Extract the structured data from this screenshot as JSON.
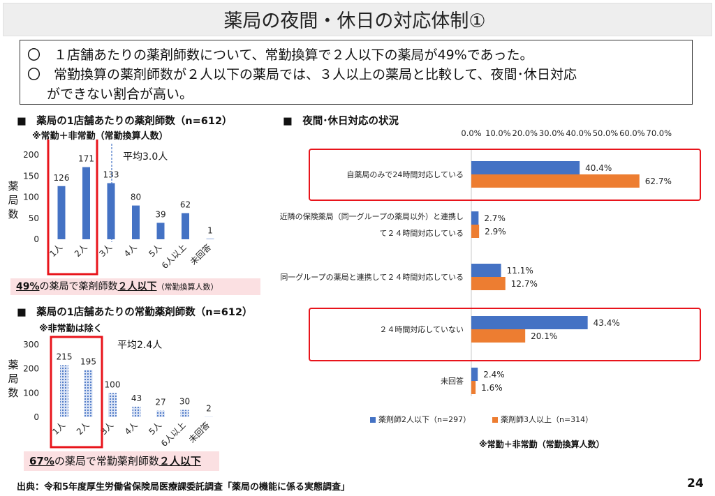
{
  "title": "薬局の夜間・休日の対応体制①",
  "summary": {
    "line1": "〇　１店舗あたりの薬剤師数について、常勤換算で２人以下の薬局が49%であった。",
    "line2": "〇　常勤換算の薬剤師数が２人以下の薬局では、３人以上の薬局と比較して、夜間･休日対応",
    "line3": "ができない割合が高い。"
  },
  "chart1": {
    "heading": "■　薬局の1店舗あたりの薬剤師数（n=612）",
    "subheading": "※常勤＋非常勤（常勤換算人数）",
    "average": "平均3.0人",
    "callout_bold1": "49%",
    "callout_text1": "の薬局で薬剤師数",
    "callout_bold2": "２人以下",
    "callout_small": "（常勤換算人数）"
  },
  "chart2": {
    "heading": "■　薬局の1店舗あたりの常勤薬剤師数（n=612）",
    "subheading": "※非常勤は除く",
    "average": "平均2.4人",
    "callout_bold1": "67%",
    "callout_text1": "の薬局で常勤薬剤師数",
    "callout_bold2": "２人以下"
  },
  "chart3": {
    "heading": "■　夜間･休日対応の状況",
    "note": "※常勤＋非常勤（常勤換算人数）"
  },
  "colors": {
    "blue": "#4472c4",
    "orange": "#ed7d31",
    "red": "#e8141b",
    "pink": "#f4b6bb"
  },
  "chart_data": [
    {
      "type": "bar",
      "title": "薬局の1店舗あたりの薬剤師数（n=612）",
      "ylabel": "薬局数",
      "categories": [
        "1人",
        "2人",
        "3人",
        "4人",
        "5人",
        "6人以上",
        "未回答"
      ],
      "values": [
        126,
        171,
        133,
        80,
        39,
        62,
        1
      ],
      "ylim": [
        0,
        200
      ],
      "yticks": [
        0,
        50,
        100,
        150,
        200
      ],
      "average_label": "平均3.0人"
    },
    {
      "type": "bar",
      "title": "薬局の1店舗あたりの常勤薬剤師数（n=612）",
      "ylabel": "薬局数",
      "categories": [
        "1人",
        "2人",
        "3人",
        "4人",
        "5人",
        "6人以上",
        "未回答"
      ],
      "values": [
        215,
        195,
        100,
        43,
        27,
        30,
        2
      ],
      "ylim": [
        0,
        300
      ],
      "yticks": [
        0,
        100,
        200,
        300
      ],
      "average_label": "平均2.4人"
    },
    {
      "type": "bar",
      "orientation": "horizontal",
      "title": "夜間･休日対応の状況",
      "categories": [
        "自薬局のみで24時間対応している",
        "近隣の保険薬局（同一グループの薬局以外）と連携して２４時間対応している",
        "同一グループの薬局と連携して２４時間対応している",
        "２４時間対応していない",
        "未回答"
      ],
      "category_lines": [
        [
          "自薬局のみで24時間対応している"
        ],
        [
          "近隣の保険薬局（同一グループの薬局以外）と連携し",
          "て２４時間対応している"
        ],
        [
          "同一グループの薬局と連携して２４時間対応している"
        ],
        [
          "２４時間対応していない"
        ],
        [
          "未回答"
        ]
      ],
      "series": [
        {
          "name": "薬剤師2人以下（n=297）",
          "values": [
            40.4,
            2.7,
            11.1,
            43.4,
            2.4
          ],
          "labels": [
            "40.4%",
            "2.7%",
            "11.1%",
            "43.4%",
            "2.4%"
          ]
        },
        {
          "name": "薬剤師3人以上（n=314）",
          "values": [
            62.7,
            2.9,
            12.7,
            20.1,
            1.6
          ],
          "labels": [
            "62.7%",
            "2.9%",
            "12.7%",
            "20.1%",
            "1.6%"
          ]
        }
      ],
      "xlim": [
        0,
        70
      ],
      "xticks": [
        "0.0%",
        "10.0%",
        "20.0%",
        "30.0%",
        "40.0%",
        "50.0%",
        "60.0%",
        "70.0%"
      ],
      "legend_position": "bottom"
    }
  ],
  "footer": {
    "source": "出典：令和5年度厚生労働省保険局医療課委託調査「薬局の機能に係る実態調査」",
    "page": "24"
  }
}
